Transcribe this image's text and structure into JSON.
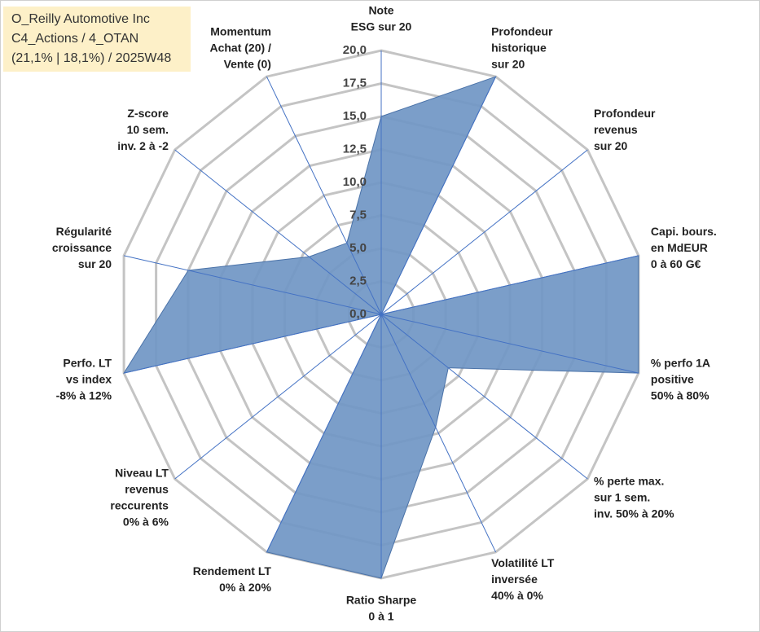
{
  "chart_data": {
    "type": "radar",
    "title": [
      "O_Reilly Automotive Inc",
      "C4_Actions / 4_OTAN",
      "(21,1% | 18,1%) / 2025W48"
    ],
    "categories": [
      [
        "Note",
        "ESG sur 20"
      ],
      [
        "Profondeur",
        "historique",
        "sur 20"
      ],
      [
        "Profondeur",
        "revenus",
        "sur 20"
      ],
      [
        "Capi. bours.",
        "en MdEUR",
        "0 à 60 G€"
      ],
      [
        "% perfo 1A",
        "positive",
        "50% à 80%"
      ],
      [
        "% perte max.",
        "sur 1 sem.",
        "inv. 50% à 20%"
      ],
      [
        "Volatilité LT",
        "inversée",
        "40% à 0%"
      ],
      [
        "Ratio Sharpe",
        "0 à 1"
      ],
      [
        "Rendement LT",
        "0% à 20%"
      ],
      [
        "Niveau LT",
        "revenus",
        "reccurents",
        "0% à 6%"
      ],
      [
        "Perfo. LT",
        "vs index",
        "-8% à 12%"
      ],
      [
        "Régularité",
        "croissance",
        "sur 20"
      ],
      [
        "Z-score",
        "10 sem.",
        "inv. 2 à -2"
      ],
      [
        "Momentum",
        "Achat (20) /",
        "Vente (0)"
      ]
    ],
    "values": [
      15,
      20,
      0,
      20,
      20,
      6.5,
      9.5,
      20,
      20,
      0,
      20,
      15,
      7,
      6
    ],
    "color": "#7096c4",
    "ylim": [
      0,
      20
    ],
    "yticks": [
      {
        "value": 0,
        "label": "0,0"
      },
      {
        "value": 2.5,
        "label": "2,5"
      },
      {
        "value": 5,
        "label": "5,0"
      },
      {
        "value": 7.5,
        "label": "7,5"
      },
      {
        "value": 10,
        "label": "10,0"
      },
      {
        "value": 12.5,
        "label": "12,5"
      },
      {
        "value": 15,
        "label": "15,0"
      },
      {
        "value": 17.5,
        "label": "17,5"
      },
      {
        "value": 20,
        "label": "20,0"
      }
    ],
    "grid": true
  }
}
